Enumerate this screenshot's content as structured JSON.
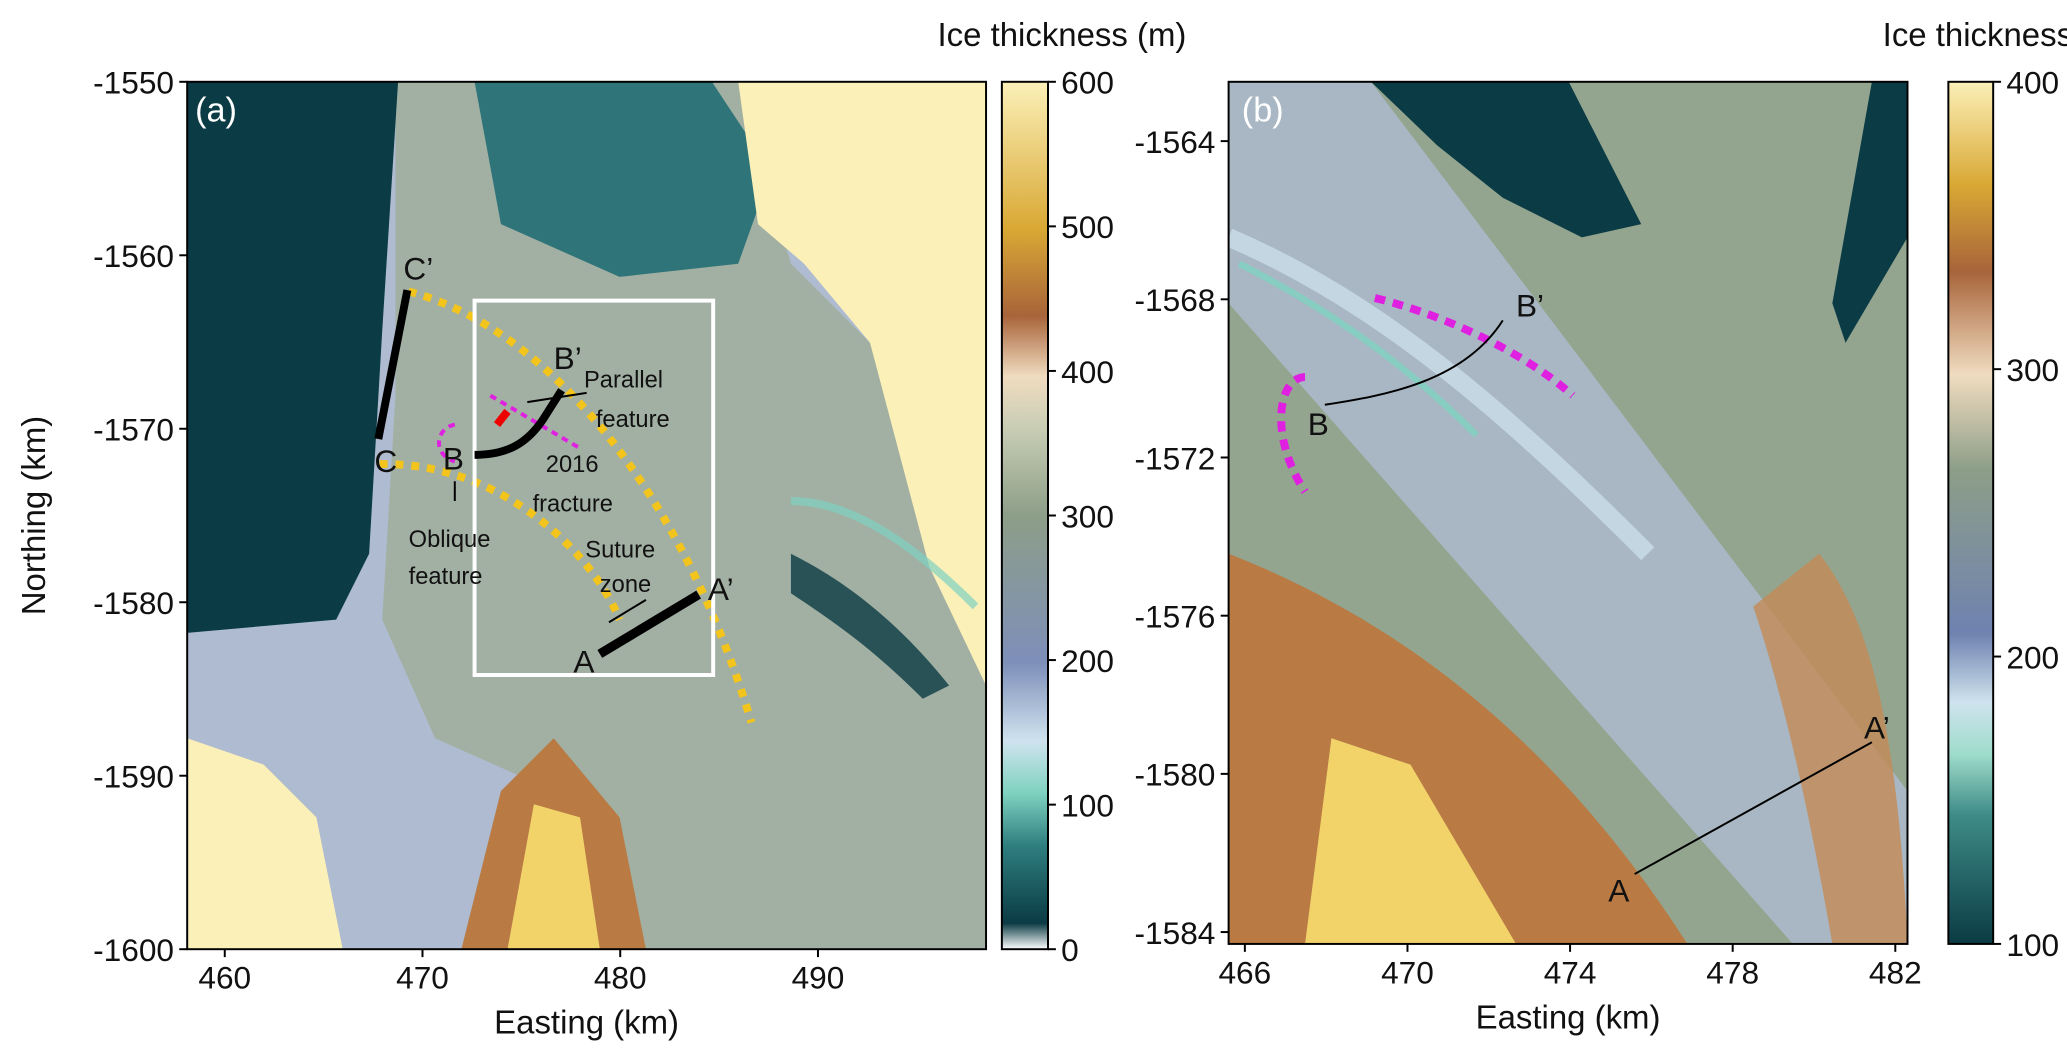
{
  "chart_data": [
    {
      "type": "map",
      "panel_label": "(a)",
      "xlabel": "Easting (km)",
      "ylabel": "Northing (km)",
      "xlim": [
        458.1,
        498.5
      ],
      "ylim": [
        -1600,
        -1550
      ],
      "xticks": [
        460,
        470,
        480,
        490
      ],
      "yticks": [
        -1600,
        -1590,
        -1580,
        -1570,
        -1560,
        -1550
      ],
      "colorbar": {
        "label": "Ice thickness (m)",
        "lim": [
          0,
          600
        ],
        "ticks": [
          0,
          100,
          200,
          300,
          400,
          500,
          600
        ]
      },
      "annotations": [
        "C’",
        "C",
        "B’",
        "B",
        "A’",
        "A",
        "Parallel",
        "feature",
        "2016",
        "fracture",
        "Oblique",
        "feature",
        "Suture",
        "zone"
      ]
    },
    {
      "type": "map",
      "panel_label": "(b)",
      "xlabel": "Easting (km)",
      "xlim": [
        465.6,
        482.3
      ],
      "ylim": [
        -1584.3,
        -1562.5
      ],
      "xticks": [
        466,
        470,
        474,
        478,
        482
      ],
      "yticks": [
        -1584,
        -1580,
        -1576,
        -1572,
        -1568,
        -1564
      ],
      "colorbar": {
        "label": "Ice thickness (m)",
        "lim": [
          100,
          400
        ],
        "ticks": [
          100,
          200,
          300,
          400
        ]
      },
      "annotations": [
        "B’",
        "B",
        "A’",
        "A"
      ]
    }
  ]
}
